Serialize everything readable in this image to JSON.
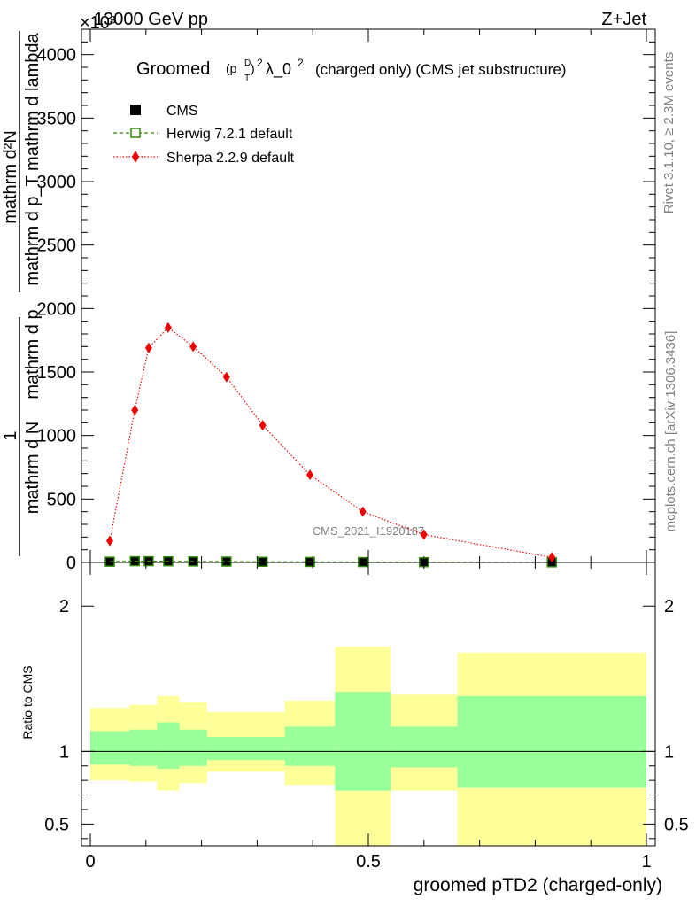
{
  "header": {
    "energy_label": "13000 GeV pp",
    "process_label": "Z+Jet",
    "exponent_label": "×10³"
  },
  "side_labels": {
    "rivet": "Rivet 3.1.10, ≥ 2.3M events",
    "mcplots": "mcplots.cern.ch [arXiv:1306.3436]"
  },
  "chart_data": [
    {
      "type": "line",
      "title": "Groomed (p_T^D)^2 λ_0^2  (charged only) (CMS jet substructure)",
      "title_parts": {
        "prefix": "Groomed",
        "var_p": "(p",
        "var_sup_D": "D",
        "var_sub_T": "T",
        "var_close": ")",
        "var_exp": "2",
        "lambda": "λ_0",
        "lambda_exp": "2",
        "suffix": "(charged only) (CMS jet substructure)"
      },
      "ylabel": {
        "top_fraction": "1",
        "bottom_fraction": "mathrm d N / mathrm d p_T",
        "bottom_line": "mathrm d N",
        "bottom_line_mid": "mathrm d p",
        "second_top": "mathrm d²N",
        "second_bottom": "mathrm d p_T mathrm d lambda",
        "line_a": "mathrm d N",
        "line_b": "mathrm d p",
        "line_c": "mathrm d p",
        "line_d": "mathrm d lambda"
      },
      "xlim": [
        0,
        1
      ],
      "ylim": [
        0,
        4200
      ],
      "y_ticks": [
        0,
        500,
        1000,
        1500,
        2000,
        2500,
        3000,
        3500,
        4000
      ],
      "y_tick_labels": [
        "0",
        "500",
        "1000",
        "1500",
        "2000",
        "2500",
        "3000",
        "3500",
        "4000"
      ],
      "legend_position": "top-left",
      "watermark": "CMS_2021_I1920187",
      "series": [
        {
          "name": "CMS",
          "color": "#000000",
          "marker": "square",
          "x": [
            0.035,
            0.08,
            0.105,
            0.14,
            0.185,
            0.245,
            0.31,
            0.395,
            0.49,
            0.6,
            0.83
          ],
          "values": [
            6,
            10,
            10,
            9,
            8,
            7,
            5,
            4,
            3,
            2,
            1
          ]
        },
        {
          "name": "Herwig 7.2.1 default",
          "color": "#2e8b00",
          "marker": "open-square",
          "x": [
            0.035,
            0.08,
            0.105,
            0.14,
            0.185,
            0.245,
            0.31,
            0.395,
            0.49,
            0.6,
            0.83
          ],
          "values": [
            6,
            10,
            10,
            9,
            8,
            7,
            5,
            4,
            3,
            2,
            1
          ]
        },
        {
          "name": "Sherpa 2.2.9 default",
          "color": "#ee0000",
          "marker": "diamond",
          "x": [
            0.035,
            0.08,
            0.105,
            0.14,
            0.185,
            0.245,
            0.31,
            0.395,
            0.49,
            0.6,
            0.83
          ],
          "values": [
            170,
            1200,
            1690,
            1850,
            1700,
            1460,
            1080,
            690,
            400,
            220,
            40
          ]
        }
      ]
    },
    {
      "type": "area",
      "ylabel": "Ratio to CMS",
      "xlabel": "groomed pTD2 (charged-only)",
      "xlim": [
        0,
        1
      ],
      "ylim": [
        0.35,
        2.3
      ],
      "x_ticks": [
        0,
        0.5,
        1
      ],
      "x_tick_labels": [
        "0",
        "0.5",
        "1"
      ],
      "y_ticks": [
        0.5,
        1,
        2
      ],
      "y_tick_labels": [
        "0.5",
        "1",
        "2"
      ],
      "reference_line": 1,
      "bands": {
        "outer_color": "#ffff99",
        "inner_color": "#99ff99",
        "bins": [
          {
            "x": [
              0.0,
              0.07
            ],
            "outer": [
              0.8,
              1.3
            ],
            "inner": [
              0.91,
              1.14
            ]
          },
          {
            "x": [
              0.07,
              0.12
            ],
            "outer": [
              0.79,
              1.32
            ],
            "inner": [
              0.9,
              1.15
            ]
          },
          {
            "x": [
              0.12,
              0.16
            ],
            "outer": [
              0.73,
              1.38
            ],
            "inner": [
              0.88,
              1.2
            ]
          },
          {
            "x": [
              0.16,
              0.21
            ],
            "outer": [
              0.78,
              1.34
            ],
            "inner": [
              0.9,
              1.15
            ]
          },
          {
            "x": [
              0.21,
              0.35
            ],
            "outer": [
              0.86,
              1.27
            ],
            "inner": [
              0.94,
              1.1
            ]
          },
          {
            "x": [
              0.35,
              0.44
            ],
            "outer": [
              0.77,
              1.35
            ],
            "inner": [
              0.9,
              1.17
            ]
          },
          {
            "x": [
              0.44,
              0.54
            ],
            "outer": [
              0.35,
              1.72
            ],
            "inner": [
              0.73,
              1.41
            ]
          },
          {
            "x": [
              0.54,
              0.66
            ],
            "outer": [
              0.73,
              1.39
            ],
            "inner": [
              0.89,
              1.17
            ]
          },
          {
            "x": [
              0.66,
              1.0
            ],
            "outer": [
              0.35,
              1.68
            ],
            "inner": [
              0.75,
              1.38
            ]
          }
        ]
      }
    }
  ]
}
